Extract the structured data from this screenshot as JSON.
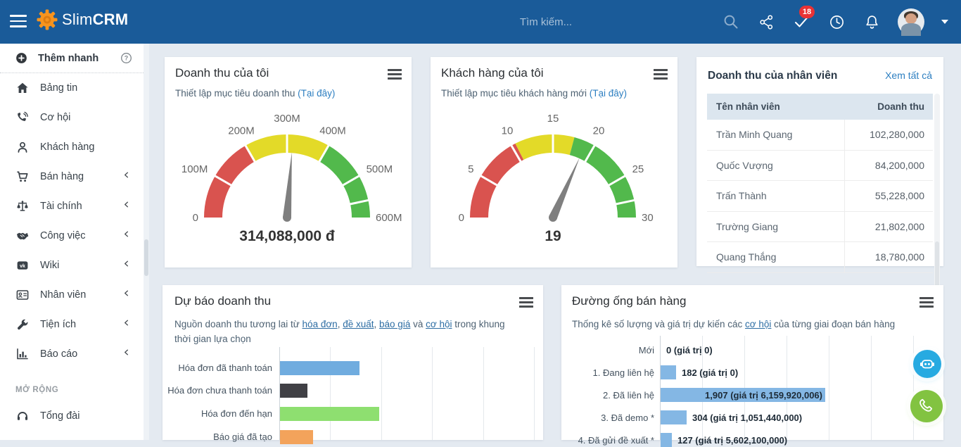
{
  "navbar": {
    "search_placeholder": "Tìm kiếm...",
    "badge_count": "18",
    "brand": {
      "light": "Slim",
      "bold": "CRM"
    }
  },
  "sidebar": {
    "quick_add_label": "Thêm nhanh",
    "items": [
      {
        "label": "Bảng tin",
        "icon": "home-icon",
        "chevron": false
      },
      {
        "label": "Cơ hội",
        "icon": "phone-icon",
        "chevron": false
      },
      {
        "label": "Khách hàng",
        "icon": "user-icon",
        "chevron": false
      },
      {
        "label": "Bán hàng",
        "icon": "cart-icon",
        "chevron": true
      },
      {
        "label": "Tài chính",
        "icon": "scale-icon",
        "chevron": true
      },
      {
        "label": "Công việc",
        "icon": "handshake-icon",
        "chevron": true
      },
      {
        "label": "Wiki",
        "icon": "vk-icon",
        "chevron": true
      },
      {
        "label": "Nhân viên",
        "icon": "id-card-icon",
        "chevron": true
      },
      {
        "label": "Tiện ích",
        "icon": "wrench-icon",
        "chevron": true
      },
      {
        "label": "Báo cáo",
        "icon": "bar-chart-icon",
        "chevron": true
      }
    ],
    "section_label": "MỞ RỘNG",
    "extra_items": [
      {
        "label": "Tổng đài",
        "icon": "headset-icon",
        "chevron": false
      }
    ]
  },
  "cards": {
    "my_revenue": {
      "title": "Doanh thu của tôi",
      "subtitle_parts": [
        {
          "text": "Thiết lập mục tiêu doanh thu "
        },
        {
          "text": "(Tại đây)",
          "link": true
        }
      ]
    },
    "my_customers": {
      "title": "Khách hàng của tôi",
      "subtitle_parts": [
        {
          "text": "Thiết lập mục tiêu khách hàng mới "
        },
        {
          "text": "(Tại đây)",
          "link": true
        }
      ]
    },
    "staff_revenue": {
      "title": "Doanh thu của nhân viên",
      "view_all_label": "Xem tất cả"
    },
    "forecast": {
      "title": "Dự báo doanh thu",
      "subtitle_parts": [
        {
          "text": "Nguồn doanh thu tương lai từ "
        },
        {
          "text": "hóa đơn",
          "link": true,
          "underline": true
        },
        {
          "text": ", "
        },
        {
          "text": "đề xuất",
          "link": true,
          "underline": true
        },
        {
          "text": ", "
        },
        {
          "text": "báo giá",
          "link": true,
          "underline": true
        },
        {
          "text": " và "
        },
        {
          "text": "cơ hội",
          "link": true,
          "underline": true
        },
        {
          "text": " trong khung thời gian lựa chọn"
        }
      ]
    },
    "pipeline": {
      "title": "Đường ống bán hàng",
      "subtitle_parts": [
        {
          "text": "Thống kê số lượng và giá trị dự kiến các "
        },
        {
          "text": "cơ hội",
          "link": true,
          "underline": true
        },
        {
          "text": " của từng giai đoạn bán hàng"
        }
      ]
    }
  },
  "chart_data": [
    {
      "id": "my_revenue_gauge",
      "type": "gauge",
      "title": "Doanh thu của tôi",
      "value": 314088000,
      "value_display": "314,088,000 đ",
      "min": 0,
      "max": 600000000,
      "tick_values": [
        0,
        100000000,
        200000000,
        300000000,
        400000000,
        500000000,
        600000000
      ],
      "tick_labels": [
        "0",
        "100M",
        "200M",
        "300M",
        "400M",
        "500M",
        "600M"
      ],
      "extra_gap_value": 560000000,
      "segments": [
        {
          "from": 0,
          "to": 200000000,
          "color": "#d9534f"
        },
        {
          "from": 200000000,
          "to": 400000000,
          "color": "#e3da28"
        },
        {
          "from": 400000000,
          "to": 600000000,
          "color": "#52b94c"
        }
      ],
      "needle_color": "#7f7f7f"
    },
    {
      "id": "my_customers_gauge",
      "type": "gauge",
      "title": "Khách hàng của tôi",
      "value": 19,
      "value_display": "19",
      "min": 0,
      "max": 30,
      "tick_values": [
        0,
        5,
        10,
        15,
        20,
        25,
        30
      ],
      "tick_labels": [
        "0",
        "5",
        "10",
        "15",
        "20",
        "25",
        "30"
      ],
      "extra_gap_value": 28,
      "segments": [
        {
          "from": 0,
          "to": 10.5,
          "color": "#d9534f"
        },
        {
          "from": 10.5,
          "to": 17.5,
          "color": "#e3da28"
        },
        {
          "from": 17.5,
          "to": 30,
          "color": "#52b94c"
        }
      ],
      "needle_color": "#7f7f7f"
    },
    {
      "id": "staff_revenue_table",
      "type": "table",
      "columns": [
        "Tên nhân viên",
        "Doanh thu"
      ],
      "rows": [
        [
          "Trần Minh Quang",
          "102,280,000"
        ],
        [
          "Quốc Vượng",
          "84,200,000"
        ],
        [
          "Trấn Thành",
          "55,228,000"
        ],
        [
          "Trường Giang",
          "21,802,000"
        ],
        [
          "Quang Thắng",
          "18,780,000"
        ]
      ]
    },
    {
      "id": "forecast_bar",
      "type": "bar",
      "orientation": "horizontal",
      "title": "Dự báo doanh thu",
      "categories": [
        "Hóa đơn đã thanh toán",
        "Hóa đơn chưa thanh toán",
        "Hóa đơn đến hạn",
        "Báo giá đã tạo"
      ],
      "values_gridline_units": [
        1.56,
        0.54,
        1.95,
        0.65
      ],
      "note": "axis value labels not visible in screenshot; values estimated in gridline units",
      "colors": [
        "#70acdf",
        "#404045",
        "#8edf70",
        "#f3a35b"
      ],
      "grid": true
    },
    {
      "id": "pipeline_bar",
      "type": "bar",
      "orientation": "horizontal",
      "title": "Đường ống bán hàng",
      "categories": [
        "Mới",
        "1. Đang liên hệ",
        "2. Đã liên hệ",
        "3. Đã demo *",
        "4. Đã gửi đề xuất *"
      ],
      "counts": [
        0,
        182,
        1907,
        304,
        127
      ],
      "bar_labels": [
        "0 (giá trị 0)",
        "182 (giá trị 0)",
        "1,907 (giá trị 6,159,920,006)",
        "304 (giá trị 1,051,440,000)",
        "127 (giá trị 5,602,100,000)"
      ],
      "xmax": 1907,
      "bar_color": "#84b7e4",
      "grid": true
    }
  ],
  "floating_buttons": [
    {
      "name": "chat-bot",
      "color": "#27aae1"
    },
    {
      "name": "phone-call",
      "color": "#82c341"
    }
  ],
  "colors": {
    "navbar": "#1a5b99",
    "background": "#e4eaf1",
    "accent_link": "#2d7fc1",
    "badge_red": "#e93235",
    "gauge_red": "#d9534f",
    "gauge_yellow": "#e3da28",
    "gauge_green": "#52b94c"
  }
}
